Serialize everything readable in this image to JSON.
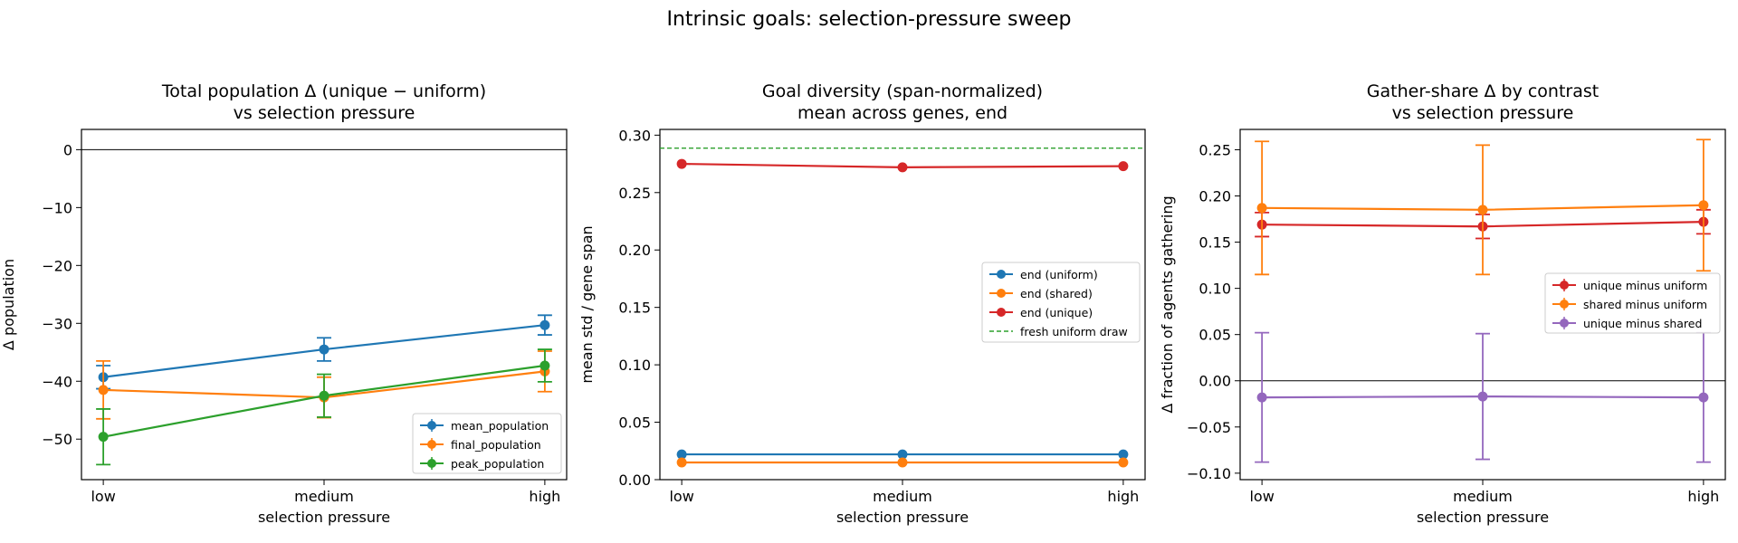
{
  "figure": {
    "title": "Intrinsic goals: selection-pressure sweep"
  },
  "chart_data": [
    {
      "type": "line",
      "title": "Total population Δ (unique − uniform)\nvs selection pressure",
      "xlabel": "selection pressure",
      "ylabel": "Δ population",
      "categories": [
        "low",
        "medium",
        "high"
      ],
      "ylim": [
        -57,
        3.5
      ],
      "yticks": [
        0,
        -10,
        -20,
        -30,
        -40,
        -50
      ],
      "ytick_labels": [
        "0",
        "−10",
        "−20",
        "−30",
        "−40",
        "−50"
      ],
      "hline": 0,
      "legend": "lower-right",
      "series": [
        {
          "name": "mean_population",
          "color": "#1f77b4",
          "values": [
            -39.3,
            -34.5,
            -30.3
          ],
          "err": [
            2.0,
            2.0,
            1.7
          ]
        },
        {
          "name": "final_population",
          "color": "#ff7f0e",
          "values": [
            -41.5,
            -42.8,
            -38.3
          ],
          "err": [
            5.0,
            3.5,
            3.5
          ]
        },
        {
          "name": "peak_population",
          "color": "#2ca02c",
          "values": [
            -49.6,
            -42.5,
            -37.3
          ],
          "err": [
            4.8,
            3.7,
            2.8
          ]
        }
      ]
    },
    {
      "type": "line",
      "title": "Goal diversity (span-normalized)\nmean across genes, end",
      "xlabel": "selection pressure",
      "ylabel": "mean std / gene span",
      "categories": [
        "low",
        "medium",
        "high"
      ],
      "ylim": [
        0,
        0.305
      ],
      "yticks": [
        0,
        0.05,
        0.1,
        0.15,
        0.2,
        0.25,
        0.3
      ],
      "ytick_labels": [
        "0.00",
        "0.05",
        "0.10",
        "0.15",
        "0.20",
        "0.25",
        "0.30"
      ],
      "reference_line": {
        "name": "fresh uniform draw",
        "value": 0.2887,
        "color": "#2ca02c"
      },
      "legend": "center-right",
      "series": [
        {
          "name": "end (uniform)",
          "color": "#1f77b4",
          "values": [
            0.022,
            0.022,
            0.022
          ]
        },
        {
          "name": "end (shared)",
          "color": "#ff7f0e",
          "values": [
            0.015,
            0.015,
            0.015
          ]
        },
        {
          "name": "end (unique)",
          "color": "#d62728",
          "values": [
            0.275,
            0.272,
            0.273
          ]
        }
      ]
    },
    {
      "type": "line",
      "title": "Gather-share Δ by contrast\nvs selection pressure",
      "xlabel": "selection pressure",
      "ylabel": "Δ fraction of agents gathering",
      "categories": [
        "low",
        "medium",
        "high"
      ],
      "ylim": [
        -0.107,
        0.272
      ],
      "yticks": [
        -0.1,
        -0.05,
        0,
        0.05,
        0.1,
        0.15,
        0.2,
        0.25
      ],
      "ytick_labels": [
        "−0.10",
        "−0.05",
        "0.00",
        "0.05",
        "0.10",
        "0.15",
        "0.20",
        "0.25"
      ],
      "hline": 0,
      "legend": "center-right",
      "series": [
        {
          "name": "unique minus uniform",
          "color": "#d62728",
          "values": [
            0.169,
            0.167,
            0.172
          ],
          "err": [
            0.013,
            0.013,
            0.013
          ]
        },
        {
          "name": "shared minus uniform",
          "color": "#ff7f0e",
          "values": [
            0.187,
            0.185,
            0.19
          ],
          "err": [
            0.072,
            0.07,
            0.071
          ]
        },
        {
          "name": "unique minus shared",
          "color": "#9467bd",
          "values": [
            -0.018,
            -0.017,
            -0.018
          ],
          "err": [
            0.07,
            0.068,
            0.07
          ]
        }
      ]
    }
  ]
}
